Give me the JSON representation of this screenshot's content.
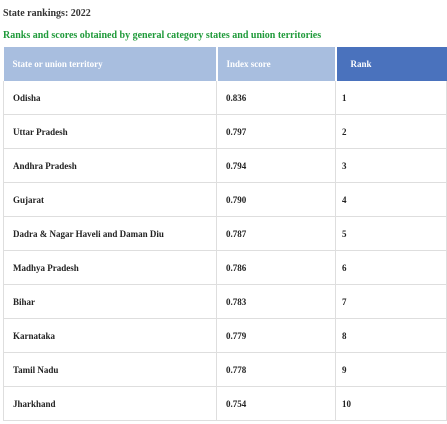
{
  "heading": "State rankings: 2022",
  "subheading": "Ranks and scores obtained by general category states and union territories",
  "colors": {
    "subheading": "#1f9a3a",
    "header_light": "#a8bedf",
    "header_dark": "#4a72bd"
  },
  "table": {
    "columns": [
      "State or union territory",
      "Index score",
      "Rank"
    ],
    "rows": [
      {
        "state": "Odisha",
        "score": "0.836",
        "rank": "1"
      },
      {
        "state": "Uttar Pradesh",
        "score": "0.797",
        "rank": "2"
      },
      {
        "state": "Andhra Pradesh",
        "score": "0.794",
        "rank": "3"
      },
      {
        "state": "Gujarat",
        "score": "0.790",
        "rank": "4"
      },
      {
        "state": "Dadra & Nagar Haveli and Daman Diu",
        "score": "0.787",
        "rank": "5"
      },
      {
        "state": "Madhya Pradesh",
        "score": "0.786",
        "rank": "6"
      },
      {
        "state": "Bihar",
        "score": "0.783",
        "rank": "7"
      },
      {
        "state": "Karnataka",
        "score": "0.779",
        "rank": "8"
      },
      {
        "state": "Tamil Nadu",
        "score": "0.778",
        "rank": "9"
      },
      {
        "state": "Jharkhand",
        "score": "0.754",
        "rank": "10"
      }
    ]
  }
}
